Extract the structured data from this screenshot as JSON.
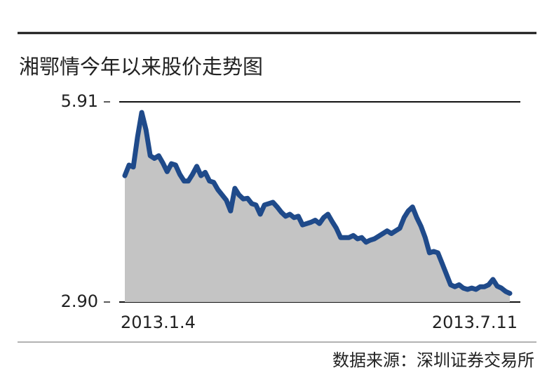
{
  "chart_data": {
    "type": "area-line",
    "title": "湘鄂情今年以来股价走势图",
    "source": "数据来源：深圳证券交易所",
    "categories": [
      "2013.1.4",
      null,
      null,
      null,
      null,
      null,
      null,
      null,
      null,
      null,
      null,
      null,
      null,
      null,
      null,
      null,
      null,
      null,
      null,
      null,
      null,
      null,
      null,
      null,
      null,
      null,
      null,
      null,
      null,
      null,
      null,
      null,
      null,
      null,
      null,
      null,
      null,
      null,
      null,
      null,
      null,
      null,
      null,
      null,
      null,
      null,
      null,
      null,
      null,
      null,
      null,
      null,
      null,
      null,
      null,
      null,
      null,
      null,
      null,
      null,
      null,
      null,
      null,
      null,
      null,
      null,
      null,
      null,
      null,
      null,
      null,
      null,
      null,
      null,
      null,
      null,
      null,
      null,
      null,
      null,
      null,
      null,
      null,
      null,
      null,
      null,
      null,
      null,
      null,
      null,
      null,
      "2013.7.11"
    ],
    "series": [
      {
        "color": "#1f4a8a",
        "area_color": "#c4c4c4",
        "values": [
          4.8,
          4.96,
          4.93,
          5.38,
          5.75,
          5.49,
          5.1,
          5.06,
          5.1,
          4.99,
          4.86,
          4.98,
          4.96,
          4.82,
          4.72,
          4.72,
          4.82,
          4.94,
          4.8,
          4.85,
          4.72,
          4.7,
          4.59,
          4.51,
          4.43,
          4.27,
          4.61,
          4.51,
          4.45,
          4.46,
          4.38,
          4.36,
          4.22,
          4.36,
          4.38,
          4.4,
          4.33,
          4.25,
          4.19,
          4.22,
          4.17,
          4.19,
          4.06,
          4.08,
          4.1,
          4.13,
          4.08,
          4.17,
          4.22,
          4.11,
          4.01,
          3.87,
          3.87,
          3.87,
          3.9,
          3.85,
          3.87,
          3.8,
          3.83,
          3.85,
          3.89,
          3.93,
          3.97,
          3.93,
          3.97,
          4.01,
          4.17,
          4.27,
          4.33,
          4.17,
          4.04,
          3.87,
          3.64,
          3.66,
          3.64,
          3.48,
          3.32,
          3.16,
          3.13,
          3.16,
          3.11,
          3.09,
          3.11,
          3.09,
          3.13,
          3.13,
          3.16,
          3.24,
          3.14,
          3.11,
          3.06,
          3.03
        ]
      }
    ],
    "ylim": [
      2.9,
      5.91
    ],
    "yticks": [
      {
        "value": 2.9,
        "label": "2.90"
      },
      5.91
    ],
    "grid": true
  }
}
